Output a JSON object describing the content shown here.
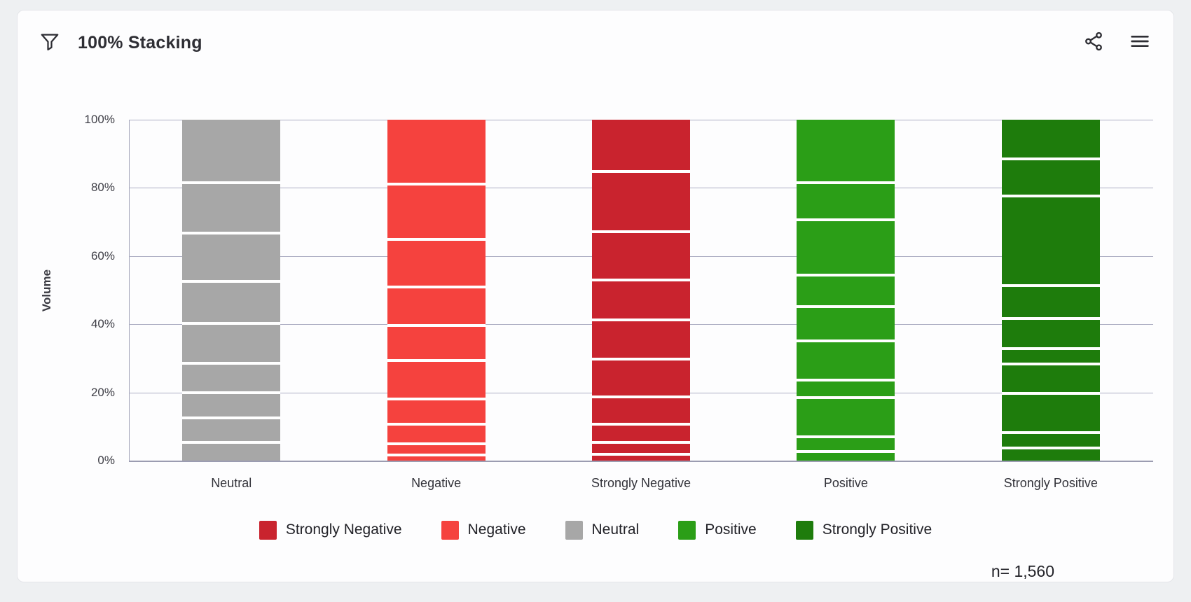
{
  "header": {
    "title": "100% Stacking",
    "icons": {
      "filter": "filter-funnel-icon",
      "share": "share-icon",
      "menu": "hamburger-menu-icon"
    }
  },
  "footer": {
    "sample_size": "n= 1,560"
  },
  "chart_data": {
    "type": "bar",
    "subtype": "stacked-100",
    "title": "100% Stacking",
    "xlabel": "",
    "ylabel": "Volume",
    "ylim": [
      0,
      100
    ],
    "yticks": [
      0,
      20,
      40,
      60,
      80,
      100
    ],
    "ytick_labels": [
      "0%",
      "20%",
      "40%",
      "60%",
      "80%",
      "100%"
    ],
    "grid": "horizontal",
    "categories": [
      "Neutral",
      "Negative",
      "Strongly Negative",
      "Positive",
      "Strongly Positive"
    ],
    "bars": [
      {
        "category": "Neutral",
        "color": "#a7a7a7",
        "total_pct": 100,
        "segments_pct_top_to_bottom": [
          18.9,
          14.8,
          14.1,
          12.4,
          11.7,
          8.6,
          7.4,
          7.2,
          4.9
        ]
      },
      {
        "category": "Negative",
        "color": "#f5423e",
        "total_pct": 100,
        "segments_pct_top_to_bottom": [
          19.3,
          16.2,
          14.0,
          11.3,
          10.2,
          11.3,
          7.4,
          5.8,
          3.3,
          1.2
        ]
      },
      {
        "category": "Strongly Negative",
        "color": "#c9232e",
        "total_pct": 100,
        "segments_pct_top_to_bottom": [
          15.6,
          17.7,
          14.1,
          11.7,
          11.5,
          11.1,
          8.0,
          5.4,
          3.5,
          1.4
        ]
      },
      {
        "category": "Positive",
        "color": "#2b9e17",
        "total_pct": 100,
        "segments_pct_top_to_bottom": [
          18.9,
          10.9,
          16.2,
          9.2,
          10.1,
          11.5,
          5.1,
          11.5,
          4.3,
          2.3
        ]
      },
      {
        "category": "Strongly Positive",
        "color": "#1e7c0c",
        "total_pct": 100,
        "segments_pct_top_to_bottom": [
          11.9,
          10.9,
          26.3,
          9.6,
          8.9,
          4.5,
          8.6,
          11.5,
          4.5,
          3.3
        ]
      }
    ],
    "legend": [
      {
        "label": "Strongly Negative",
        "color": "#c9232e"
      },
      {
        "label": "Negative",
        "color": "#f5423e"
      },
      {
        "label": "Neutral",
        "color": "#a7a7a7"
      },
      {
        "label": "Positive",
        "color": "#2b9e17"
      },
      {
        "label": "Strongly Positive",
        "color": "#1e7c0c"
      }
    ],
    "legend_position": "bottom-center",
    "sample_size_label": "n= 1,560",
    "colors": {
      "gridline": "#abacc2",
      "axis": "#9b9cb1",
      "segment_separator": "#ffffff"
    }
  }
}
